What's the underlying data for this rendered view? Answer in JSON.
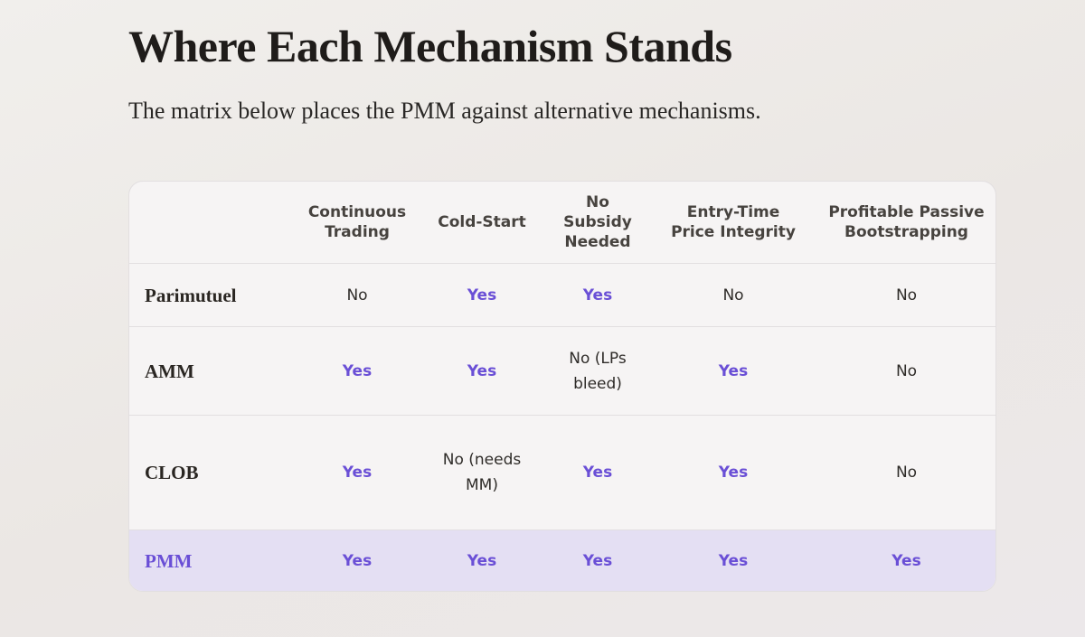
{
  "header": {
    "title": "Where Each Mechanism Stands",
    "subtitle": "The matrix below places the PMM against alternative mechanisms."
  },
  "table": {
    "columns": [
      "Continuous Trading",
      "Cold-Start",
      "No Subsidy Needed",
      "Entry-Time Price Integrity",
      "Profitable Passive Bootstrapping"
    ],
    "rows": [
      {
        "label": "Parimutuel",
        "cells": [
          "No",
          "Yes",
          "Yes",
          "No",
          "No"
        ]
      },
      {
        "label": "AMM",
        "cells": [
          "Yes",
          "Yes",
          "No (LPs bleed)",
          "Yes",
          "No"
        ]
      },
      {
        "label": "CLOB",
        "cells": [
          "Yes",
          "No (needs MM)",
          "Yes",
          "Yes",
          "No"
        ]
      },
      {
        "label": "PMM",
        "cells": [
          "Yes",
          "Yes",
          "Yes",
          "Yes",
          "Yes"
        ]
      }
    ]
  }
}
